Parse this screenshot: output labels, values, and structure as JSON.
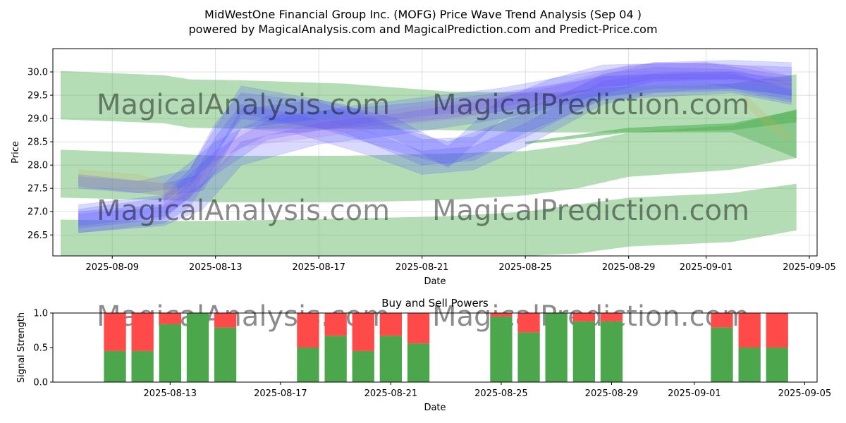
{
  "colors": {
    "green_band": "#4caf50",
    "blue_band": "#5050ff",
    "purple_band": "#b070e0",
    "tan_band": "#c8b060",
    "buy": "#4ca64c",
    "sell": "#ff4a4a",
    "watermark": "#c8c8c8"
  },
  "figure": {
    "title_line1": "MidWestOne Financial Group Inc. (MOFG) Price Wave Trend Analysis (Sep 04 )",
    "title_line2": "powered by MagicalAnalysis.com and MagicalPrediction.com and Predict-Price.com",
    "watermarks": [
      "MagicalAnalysis.com",
      "MagicalPrediction.com"
    ]
  },
  "chart_data": [
    {
      "type": "area",
      "title": "",
      "xlabel": "Date",
      "ylabel": "Price",
      "x_range": [
        "2025-08-06.7",
        "2025-09-05.3"
      ],
      "ylim": [
        26.05,
        30.5
      ],
      "x_ticks": [
        {
          "date": "2025-08-09",
          "label": "2025-08-09"
        },
        {
          "date": "2025-08-13",
          "label": "2025-08-13"
        },
        {
          "date": "2025-08-17",
          "label": "2025-08-17"
        },
        {
          "date": "2025-08-21",
          "label": "2025-08-21"
        },
        {
          "date": "2025-08-25",
          "label": "2025-08-25"
        },
        {
          "date": "2025-08-29",
          "label": "2025-08-29"
        },
        {
          "date": "2025-09-01",
          "label": "2025-09-01"
        },
        {
          "date": "2025-09-05",
          "label": "2025-09-05"
        }
      ],
      "y_ticks": [
        26.5,
        27.0,
        27.5,
        28.0,
        28.5,
        29.0,
        29.5,
        30.0
      ],
      "y_tick_labels": [
        "26.5",
        "27.0",
        "27.5",
        "28.0",
        "28.5",
        "29.0",
        "29.5",
        "30.0"
      ],
      "grid": true,
      "green_bands": [
        {
          "name": "upper-channel",
          "x": [
            "2025-08-07",
            "2025-08-11",
            "2025-08-12",
            "2025-08-14",
            "2025-08-18",
            "2025-08-22",
            "2025-08-26",
            "2025-08-29",
            "2025-09-02",
            "2025-09-04.5"
          ],
          "upper": [
            30.02,
            29.93,
            29.84,
            29.82,
            29.75,
            29.58,
            29.55,
            29.7,
            29.75,
            29.95
          ],
          "lower": [
            28.98,
            28.9,
            28.8,
            28.78,
            28.78,
            28.75,
            28.7,
            28.7,
            28.7,
            28.15
          ]
        },
        {
          "name": "middle-channel",
          "x": [
            "2025-08-07",
            "2025-08-11",
            "2025-08-13",
            "2025-08-18",
            "2025-08-22",
            "2025-08-25",
            "2025-08-27",
            "2025-08-29",
            "2025-09-02",
            "2025-09-04.5"
          ],
          "upper": [
            28.33,
            28.25,
            28.2,
            28.2,
            28.25,
            28.3,
            28.45,
            28.7,
            28.85,
            29.2
          ],
          "lower": [
            27.3,
            27.25,
            27.2,
            27.2,
            27.25,
            27.35,
            27.5,
            27.75,
            27.9,
            28.15
          ]
        },
        {
          "name": "lower-channel",
          "x": [
            "2025-08-07",
            "2025-08-11",
            "2025-08-13",
            "2025-08-18",
            "2025-08-22",
            "2025-08-25",
            "2025-08-27",
            "2025-08-29",
            "2025-09-02",
            "2025-09-04.5"
          ],
          "upper": [
            26.83,
            26.8,
            26.8,
            26.85,
            26.9,
            27.0,
            27.15,
            27.3,
            27.4,
            27.6
          ],
          "lower": [
            26.05,
            26.05,
            26.05,
            26.05,
            26.05,
            26.05,
            26.1,
            26.25,
            26.35,
            26.6
          ]
        },
        {
          "name": "trend-line",
          "x": [
            "2025-08-25",
            "2025-08-29",
            "2025-09-02",
            "2025-09-04.5"
          ],
          "upper": [
            28.5,
            28.8,
            28.9,
            29.18
          ],
          "lower": [
            28.45,
            28.7,
            28.75,
            28.92
          ]
        }
      ],
      "wave_bands": [
        {
          "name": "wave-1",
          "color": "blue",
          "x": [
            "2025-08-07.7",
            "2025-08-11",
            "2025-08-12",
            "2025-08-13",
            "2025-08-14",
            "2025-08-16",
            "2025-08-19",
            "2025-08-21",
            "2025-08-23",
            "2025-08-25",
            "2025-08-28",
            "2025-08-30",
            "2025-09-02",
            "2025-09-04.3"
          ],
          "upper": [
            27.0,
            27.15,
            27.6,
            28.6,
            29.3,
            29.1,
            28.7,
            28.3,
            28.4,
            28.9,
            29.8,
            29.95,
            29.95,
            29.65
          ],
          "lower": [
            26.55,
            26.75,
            27.1,
            28.0,
            28.8,
            28.7,
            28.2,
            27.8,
            27.9,
            28.4,
            29.3,
            29.55,
            29.6,
            29.35
          ]
        },
        {
          "name": "wave-2",
          "color": "blue",
          "x": [
            "2025-08-07.7",
            "2025-08-11",
            "2025-08-12",
            "2025-08-13",
            "2025-08-14",
            "2025-08-17",
            "2025-08-20",
            "2025-08-22",
            "2025-08-25",
            "2025-08-28",
            "2025-08-30",
            "2025-09-02",
            "2025-09-04.3"
          ],
          "upper": [
            27.15,
            27.35,
            27.9,
            28.9,
            29.55,
            29.35,
            28.8,
            28.5,
            29.1,
            29.95,
            30.1,
            30.05,
            29.75
          ],
          "lower": [
            26.7,
            26.9,
            27.3,
            28.3,
            29.0,
            28.8,
            28.3,
            28.0,
            28.6,
            29.45,
            29.65,
            29.65,
            29.4
          ]
        },
        {
          "name": "wave-3",
          "color": "blue",
          "x": [
            "2025-08-07.7",
            "2025-08-10",
            "2025-08-12",
            "2025-08-13",
            "2025-08-14",
            "2025-08-18",
            "2025-08-21",
            "2025-08-23",
            "2025-08-25",
            "2025-08-28",
            "2025-09-02",
            "2025-09-04.3"
          ],
          "upper": [
            27.75,
            27.65,
            27.9,
            28.8,
            29.7,
            29.3,
            28.55,
            28.6,
            29.2,
            29.9,
            30.0,
            29.6
          ],
          "lower": [
            27.5,
            27.4,
            27.55,
            28.2,
            29.1,
            28.7,
            28.0,
            28.1,
            28.7,
            29.4,
            29.55,
            29.3
          ]
        },
        {
          "name": "wave-4",
          "color": "blue",
          "x": [
            "2025-08-07.7",
            "2025-08-11",
            "2025-08-12.5",
            "2025-08-14",
            "2025-08-17",
            "2025-08-20",
            "2025-08-23",
            "2025-08-25",
            "2025-08-28",
            "2025-08-31",
            "2025-09-02",
            "2025-09-04.3"
          ],
          "upper": [
            26.95,
            27.1,
            27.6,
            28.5,
            28.9,
            29.1,
            29.35,
            29.55,
            29.9,
            30.0,
            30.0,
            29.85
          ],
          "lower": [
            26.55,
            26.7,
            27.05,
            28.0,
            28.45,
            28.65,
            28.9,
            29.1,
            29.5,
            29.6,
            29.65,
            29.5
          ]
        },
        {
          "name": "wave-5",
          "color": "blue",
          "x": [
            "2025-08-07.7",
            "2025-08-11",
            "2025-08-13",
            "2025-08-15",
            "2025-08-18",
            "2025-08-21",
            "2025-08-24",
            "2025-08-27",
            "2025-08-30",
            "2025-09-02",
            "2025-09-04.3"
          ],
          "upper": [
            27.05,
            27.3,
            28.3,
            28.95,
            29.25,
            29.45,
            29.65,
            29.95,
            30.2,
            30.15,
            30.1
          ],
          "lower": [
            26.65,
            26.85,
            27.8,
            28.55,
            28.85,
            29.05,
            29.25,
            29.55,
            29.85,
            29.85,
            29.7
          ]
        },
        {
          "name": "wave-6",
          "color": "blue",
          "x": [
            "2025-08-11",
            "2025-08-13",
            "2025-08-15",
            "2025-08-18",
            "2025-08-21",
            "2025-08-24",
            "2025-08-27",
            "2025-08-30",
            "2025-09-02",
            "2025-09-04.3"
          ],
          "upper": [
            27.6,
            28.5,
            29.05,
            29.2,
            29.35,
            29.55,
            29.8,
            30.2,
            30.25,
            30.2
          ],
          "lower": [
            27.2,
            28.1,
            28.65,
            28.8,
            28.95,
            29.15,
            29.4,
            29.8,
            29.85,
            29.8
          ]
        },
        {
          "name": "wave-7",
          "color": "purple",
          "x": [
            "2025-08-11",
            "2025-08-12",
            "2025-08-13",
            "2025-08-14",
            "2025-08-17",
            "2025-08-20",
            "2025-08-23",
            "2025-08-26",
            "2025-08-29",
            "2025-09-01",
            "2025-09-03",
            "2025-09-04.3"
          ],
          "upper": [
            27.35,
            27.6,
            28.2,
            28.75,
            28.95,
            29.2,
            29.4,
            29.7,
            30.15,
            30.2,
            30.1,
            29.9
          ],
          "lower": [
            27.1,
            27.3,
            27.85,
            28.4,
            28.6,
            28.85,
            29.05,
            29.35,
            29.8,
            29.85,
            29.75,
            29.6
          ]
        },
        {
          "name": "wave-8",
          "color": "blue",
          "x": [
            "2025-08-07.7",
            "2025-08-11",
            "2025-08-12.5",
            "2025-08-14",
            "2025-08-17",
            "2025-08-20",
            "2025-08-22",
            "2025-08-24",
            "2025-08-26",
            "2025-08-28",
            "2025-09-01",
            "2025-09-04.3"
          ],
          "upper": [
            27.8,
            27.6,
            27.8,
            29.2,
            29.4,
            29.0,
            28.4,
            29.4,
            29.85,
            30.15,
            30.2,
            29.9
          ],
          "lower": [
            27.55,
            27.35,
            27.45,
            28.8,
            29.0,
            28.55,
            27.95,
            28.95,
            29.4,
            29.7,
            29.75,
            29.5
          ]
        },
        {
          "name": "wave-9",
          "color": "tan",
          "x": [
            "2025-08-07.7",
            "2025-08-10",
            "2025-08-11.5"
          ],
          "upper": [
            27.9,
            27.8,
            27.55
          ],
          "lower": [
            27.55,
            27.45,
            27.3
          ]
        },
        {
          "name": "wave-10",
          "color": "tan",
          "x": [
            "2025-09-02.5",
            "2025-09-03.5",
            "2025-09-04.2"
          ],
          "upper": [
            29.5,
            29.0,
            28.7
          ],
          "lower": [
            29.3,
            28.75,
            28.5
          ]
        }
      ]
    },
    {
      "type": "bar",
      "title": "Buy and Sell Powers",
      "xlabel": "Date",
      "ylabel": "Signal Strength",
      "x_range": [
        "2025-08-08.75",
        "2025-09-05.45"
      ],
      "ylim": [
        0.0,
        1.0
      ],
      "y_ticks": [
        0.0,
        0.5,
        1.0
      ],
      "y_tick_labels": [
        "0.0",
        "0.5",
        "1.0"
      ],
      "x_ticks": [
        {
          "date": "2025-08-13",
          "label": "2025-08-13"
        },
        {
          "date": "2025-08-17",
          "label": "2025-08-17"
        },
        {
          "date": "2025-08-21",
          "label": "2025-08-21"
        },
        {
          "date": "2025-08-25",
          "label": "2025-08-25"
        },
        {
          "date": "2025-08-29",
          "label": "2025-08-29"
        },
        {
          "date": "2025-09-01",
          "label": "2025-09-01"
        },
        {
          "date": "2025-09-05",
          "label": "2025-09-05"
        }
      ],
      "grid": false,
      "series": [
        {
          "name": "Buy Power",
          "color": "green"
        },
        {
          "name": "Sell Power",
          "color": "red"
        }
      ],
      "categories": [
        "2025-08-11",
        "2025-08-12",
        "2025-08-13",
        "2025-08-14",
        "2025-08-15",
        "2025-08-18",
        "2025-08-19",
        "2025-08-20",
        "2025-08-21",
        "2025-08-22",
        "2025-08-25",
        "2025-08-26",
        "2025-08-27",
        "2025-08-28",
        "2025-08-29",
        "2025-09-02",
        "2025-09-03",
        "2025-09-04"
      ],
      "buy": [
        0.45,
        0.45,
        0.84,
        1.0,
        0.79,
        0.5,
        0.67,
        0.45,
        0.67,
        0.56,
        0.95,
        0.72,
        1.0,
        0.88,
        0.88,
        0.79,
        0.5,
        0.5
      ],
      "sell": [
        0.55,
        0.55,
        0.16,
        0.0,
        0.21,
        0.5,
        0.33,
        0.55,
        0.33,
        0.44,
        0.05,
        0.28,
        0.0,
        0.12,
        0.12,
        0.21,
        0.5,
        0.5
      ]
    }
  ]
}
